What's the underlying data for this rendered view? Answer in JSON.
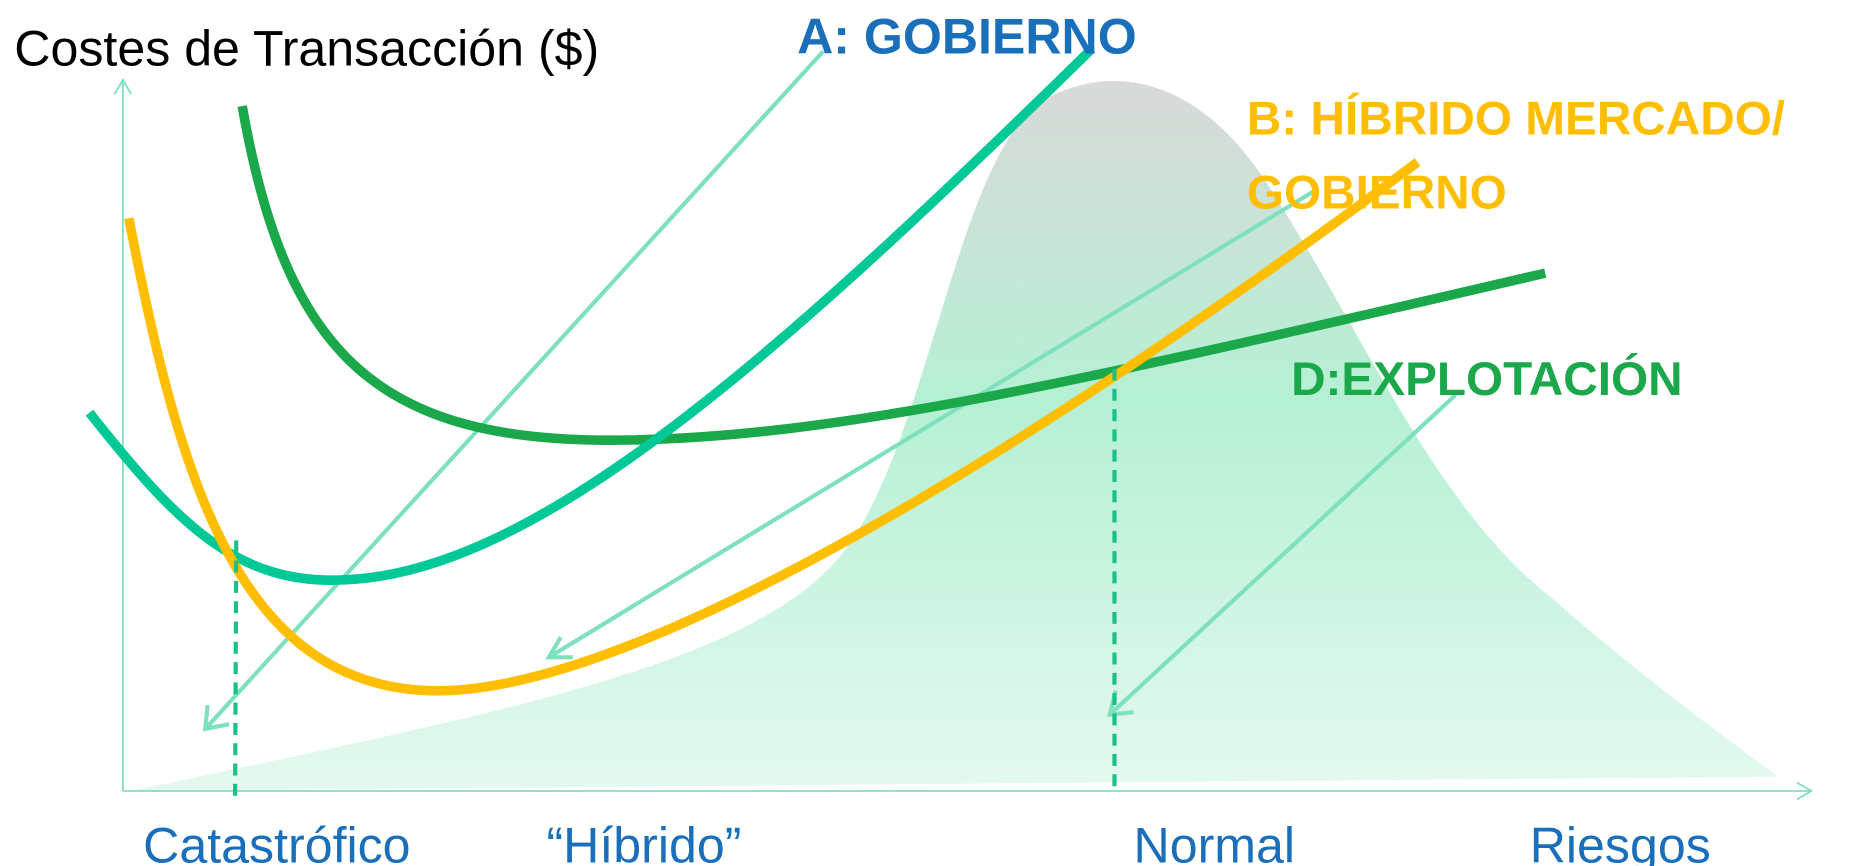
{
  "axis_label": "Costes de Transacción ($)",
  "curves": [
    {
      "label": [
        "A: GOBIERNO"
      ]
    },
    {
      "label": [
        "B: HÍBRIDO MERCADO/",
        "GOBIERNO"
      ]
    },
    {
      "label": [
        "D:EXPLOTACIÓN"
      ]
    }
  ],
  "x_labels": [
    "Catastrófico",
    "“Híbrido”",
    "Normal",
    "Riesgos"
  ]
}
